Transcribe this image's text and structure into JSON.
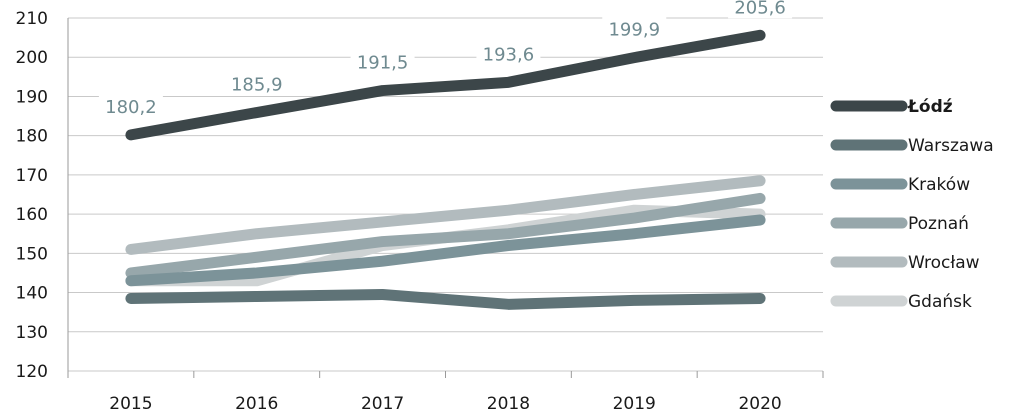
{
  "chart_data": {
    "type": "line",
    "title": "",
    "xlabel": "",
    "ylabel": "",
    "x": [
      "2015",
      "2016",
      "2017",
      "2018",
      "2019",
      "2020"
    ],
    "ylim": [
      120,
      210
    ],
    "yticks": [
      "120",
      "130",
      "140",
      "150",
      "160",
      "170",
      "180",
      "190",
      "200",
      "210"
    ],
    "grid": true,
    "legend_position": "right",
    "series": [
      {
        "name": "Gdańsk",
        "color": "#cfd3d4",
        "values": [
          143,
          143,
          152,
          156,
          161,
          160
        ]
      },
      {
        "name": "Wrocław",
        "color": "#b2bbbe",
        "values": [
          151,
          155,
          158,
          161,
          165,
          168.5
        ]
      },
      {
        "name": "Poznań",
        "color": "#97a7ab",
        "values": [
          145,
          149,
          153,
          155,
          159,
          164
        ]
      },
      {
        "name": "Kraków",
        "color": "#7c9399",
        "values": [
          143,
          145,
          148,
          152,
          155,
          158.5
        ]
      },
      {
        "name": "Warszawa",
        "color": "#5f7377",
        "values": [
          138.5,
          139,
          139.5,
          137,
          138,
          138.5
        ]
      },
      {
        "name": "Łódź",
        "color": "#3c4649",
        "values": [
          180.2,
          185.9,
          191.5,
          193.6,
          199.9,
          205.6
        ]
      }
    ],
    "data_labels": {
      "series": "Łódź",
      "labels": [
        "180,2",
        "185,9",
        "191,5",
        "193,6",
        "199,9",
        "205,6"
      ]
    },
    "legend": [
      {
        "name": "Łódź",
        "color": "#3c4649",
        "bold": true
      },
      {
        "name": "Warszawa",
        "color": "#5f7377",
        "bold": false
      },
      {
        "name": "Kraków",
        "color": "#7c9399",
        "bold": false
      },
      {
        "name": "Poznań",
        "color": "#97a7ab",
        "bold": false
      },
      {
        "name": "Wrocław",
        "color": "#b2bbbe",
        "bold": false
      },
      {
        "name": "Gdańsk",
        "color": "#cfd3d4",
        "bold": false
      }
    ]
  }
}
